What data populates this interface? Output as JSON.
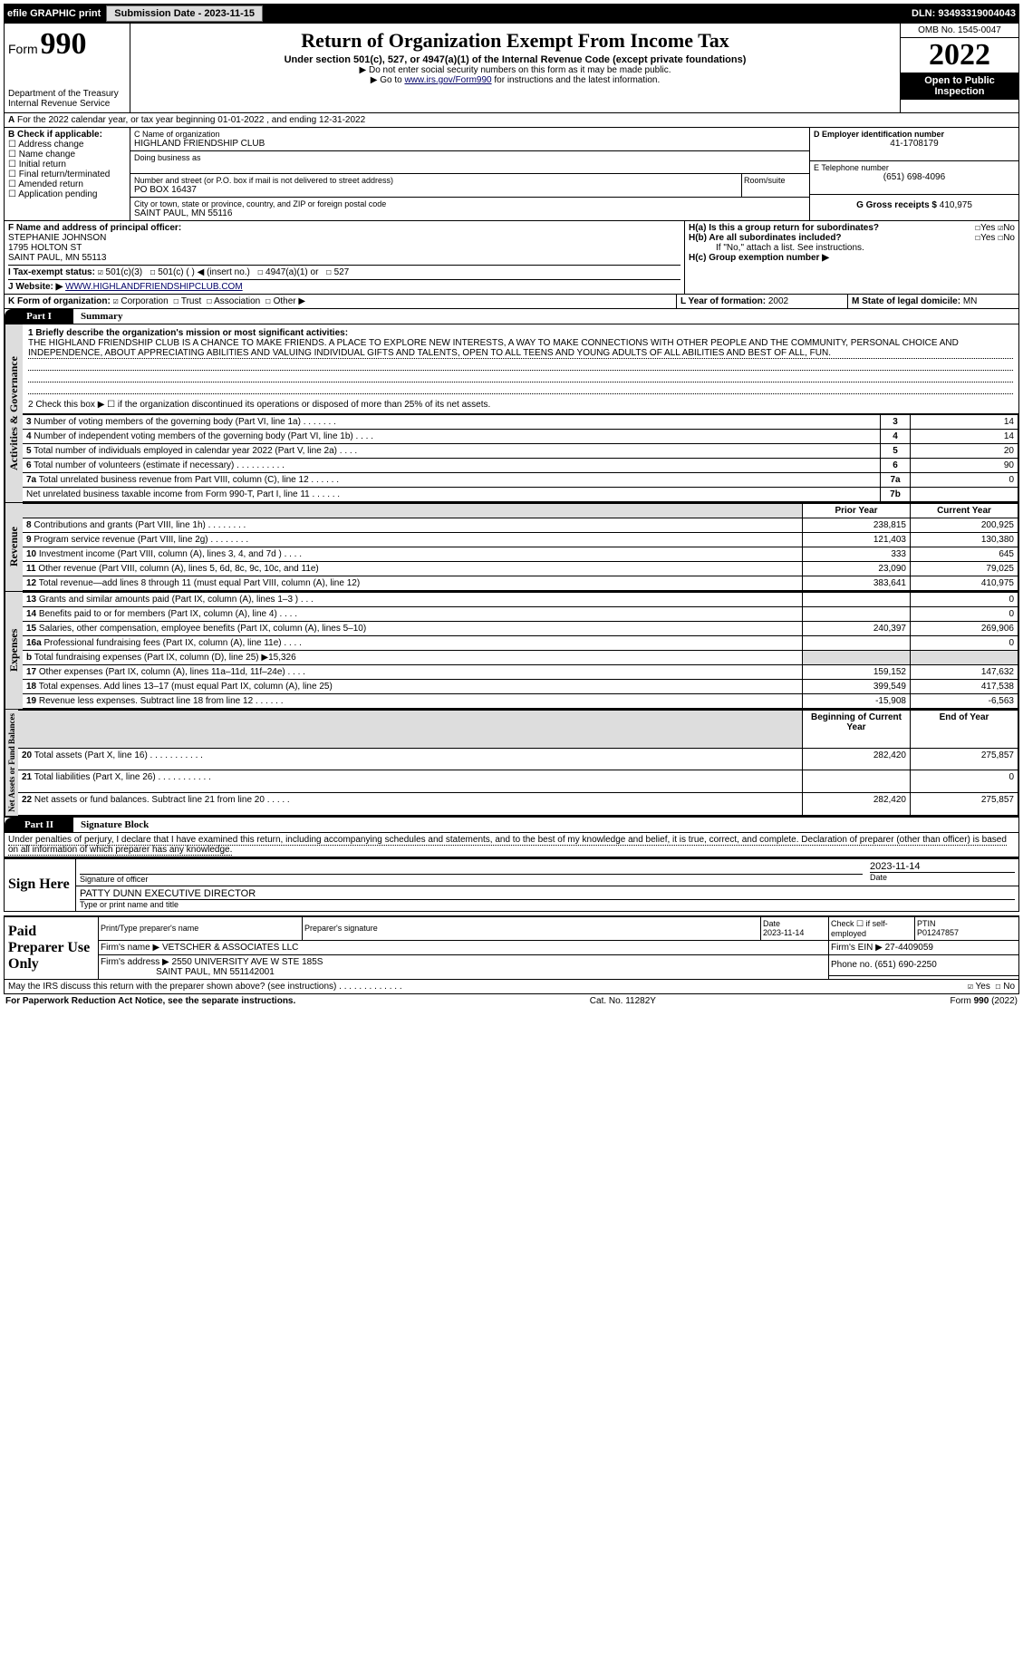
{
  "top": {
    "efile": "efile GRAPHIC print",
    "sub": "Submission Date - 2023-11-15",
    "dln": "DLN: 93493319004043"
  },
  "hdr": {
    "form": "Form",
    "no": "990",
    "title": "Return of Organization Exempt From Income Tax",
    "sub": "Under section 501(c), 527, or 4947(a)(1) of the Internal Revenue Code (except private foundations)",
    "note1": "▶ Do not enter social security numbers on this form as it may be made public.",
    "note2": "▶ Go to www.irs.gov/Form990 for instructions and the latest information.",
    "link": "www.irs.gov/Form990",
    "dept": "Department of the Treasury",
    "irs": "Internal Revenue Service",
    "omb": "OMB No. 1545-0047",
    "yr": "2022",
    "insp": "Open to Public Inspection"
  },
  "A": {
    "txt": "For the 2022 calendar year, or tax year beginning 01-01-2022   , and ending 12-31-2022"
  },
  "B": {
    "hdr": "B Check if applicable:",
    "items": [
      "Address change",
      "Name change",
      "Initial return",
      "Final return/terminated",
      "Amended return",
      "Application pending"
    ]
  },
  "C": {
    "lbl": "C Name of organization",
    "name": "HIGHLAND FRIENDSHIP CLUB",
    "dba": "Doing business as",
    "addr_lbl": "Number and street (or P.O. box if mail is not delivered to street address)",
    "room": "Room/suite",
    "addr": "PO BOX 16437",
    "city_lbl": "City or town, state or province, country, and ZIP or foreign postal code",
    "city": "SAINT PAUL, MN  55116"
  },
  "D": {
    "lbl": "D Employer identification number",
    "val": "41-1708179"
  },
  "E": {
    "lbl": "E Telephone number",
    "val": "(651) 698-4096"
  },
  "G": {
    "lbl": "G Gross receipts $",
    "val": "410,975"
  },
  "F": {
    "lbl": "F Name and address of principal officer:",
    "name": "STEPHANIE JOHNSON",
    "addr1": "1795 HOLTON ST",
    "addr2": "SAINT PAUL, MN  55113"
  },
  "H": {
    "a": "H(a)  Is this a group return for subordinates?",
    "b": "H(b)  Are all subordinates included?",
    "note": "If \"No,\" attach a list. See instructions.",
    "c": "H(c)  Group exemption number ▶",
    "yes": "Yes",
    "no": "No"
  },
  "I": {
    "lbl": "I  Tax-exempt status:",
    "opts": [
      "501(c)(3)",
      "501(c) (  ) ◀ (insert no.)",
      "4947(a)(1) or",
      "527"
    ]
  },
  "J": {
    "lbl": "J  Website: ▶",
    "val": "WWW.HIGHLANDFRIENDSHIPCLUB.COM"
  },
  "K": {
    "lbl": "K Form of organization:",
    "opts": [
      "Corporation",
      "Trust",
      "Association",
      "Other ▶"
    ]
  },
  "L": {
    "lbl": "L Year of formation:",
    "val": "2002"
  },
  "M": {
    "lbl": "M State of legal domicile:",
    "val": "MN"
  },
  "p1": {
    "bar": "Part I",
    "name": "Summary",
    "l1": "1 Briefly describe the organization's mission or most significant activities:",
    "mission": "THE HIGHLAND FRIENDSHIP CLUB IS A CHANCE TO MAKE FRIENDS. A PLACE TO EXPLORE NEW INTERESTS, A WAY TO MAKE CONNECTIONS WITH OTHER PEOPLE AND THE COMMUNITY, PERSONAL CHOICE AND INDEPENDENCE, ABOUT APPRECIATING ABILITIES AND VALUING INDIVIDUAL GIFTS AND TALENTS, OPEN TO ALL TEENS AND YOUNG ADULTS OF ALL ABILITIES AND BEST OF ALL, FUN.",
    "l2": "2  Check this box ▶ ☐  if the organization discontinued its operations or disposed of more than 25% of its net assets."
  },
  "ag": {
    "strip": "Activities & Governance",
    "rows": [
      {
        "n": "3",
        "t": "Number of voting members of the governing body (Part VI, line 1a)  .   .   .   .   .   .   .",
        "c": "3",
        "v": "14"
      },
      {
        "n": "4",
        "t": "Number of independent voting members of the governing body (Part VI, line 1b)  .   .   .   .",
        "c": "4",
        "v": "14"
      },
      {
        "n": "5",
        "t": "Total number of individuals employed in calendar year 2022 (Part V, line 2a)  .   .   .   .",
        "c": "5",
        "v": "20"
      },
      {
        "n": "6",
        "t": "Total number of volunteers (estimate if necessary)   .   .   .   .   .   .   .   .   .   .",
        "c": "6",
        "v": "90"
      },
      {
        "n": "7a",
        "t": "Total unrelated business revenue from Part VIII, column (C), line 12  .   .   .   .   .   .",
        "c": "7a",
        "v": "0"
      },
      {
        "n": "",
        "t": "Net unrelated business taxable income from Form 990-T, Part I, line 11  .   .   .   .   .   .",
        "c": "7b",
        "v": ""
      }
    ]
  },
  "rev": {
    "strip": "Revenue",
    "h1": "Prior Year",
    "h2": "Current Year",
    "rows": [
      {
        "n": "8",
        "t": "Contributions and grants (Part VIII, line 1h)   .   .   .   .   .   .   .   .",
        "p": "238,815",
        "c": "200,925"
      },
      {
        "n": "9",
        "t": "Program service revenue (Part VIII, line 2g)   .   .   .   .   .   .   .   .",
        "p": "121,403",
        "c": "130,380"
      },
      {
        "n": "10",
        "t": "Investment income (Part VIII, column (A), lines 3, 4, and 7d )   .   .   .   .",
        "p": "333",
        "c": "645"
      },
      {
        "n": "11",
        "t": "Other revenue (Part VIII, column (A), lines 5, 6d, 8c, 9c, 10c, and 11e)",
        "p": "23,090",
        "c": "79,025"
      },
      {
        "n": "12",
        "t": "Total revenue—add lines 8 through 11 (must equal Part VIII, column (A), line 12)",
        "p": "383,641",
        "c": "410,975"
      }
    ]
  },
  "exp": {
    "strip": "Expenses",
    "rows": [
      {
        "n": "13",
        "t": "Grants and similar amounts paid (Part IX, column (A), lines 1–3 )   .   .   .",
        "p": "",
        "c": "0"
      },
      {
        "n": "14",
        "t": "Benefits paid to or for members (Part IX, column (A), line 4)   .   .   .   .",
        "p": "",
        "c": "0"
      },
      {
        "n": "15",
        "t": "Salaries, other compensation, employee benefits (Part IX, column (A), lines 5–10)",
        "p": "240,397",
        "c": "269,906"
      },
      {
        "n": "16a",
        "t": "Professional fundraising fees (Part IX, column (A), line 11e)   .   .   .   .",
        "p": "",
        "c": "0"
      },
      {
        "n": "b",
        "t": "Total fundraising expenses (Part IX, column (D), line 25) ▶15,326",
        "p": "SH",
        "c": "SH"
      },
      {
        "n": "17",
        "t": "Other expenses (Part IX, column (A), lines 11a–11d, 11f–24e)   .   .   .   .",
        "p": "159,152",
        "c": "147,632"
      },
      {
        "n": "18",
        "t": "Total expenses. Add lines 13–17 (must equal Part IX, column (A), line 25)",
        "p": "399,549",
        "c": "417,538"
      },
      {
        "n": "19",
        "t": "Revenue less expenses. Subtract line 18 from line 12  .   .   .   .   .   .",
        "p": "-15,908",
        "c": "-6,563"
      }
    ]
  },
  "na": {
    "strip": "Net Assets or Fund Balances",
    "h1": "Beginning of Current Year",
    "h2": "End of Year",
    "rows": [
      {
        "n": "20",
        "t": "Total assets (Part X, line 16)  .   .   .   .   .   .   .   .   .   .   .",
        "p": "282,420",
        "c": "275,857"
      },
      {
        "n": "21",
        "t": "Total liabilities (Part X, line 26)  .   .   .   .   .   .   .   .   .   .   .",
        "p": "",
        "c": "0"
      },
      {
        "n": "22",
        "t": "Net assets or fund balances. Subtract line 21 from line 20  .   .   .   .   .",
        "p": "282,420",
        "c": "275,857"
      }
    ]
  },
  "p2": {
    "bar": "Part II",
    "name": "Signature Block",
    "decl": "Under penalties of perjury, I declare that I have examined this return, including accompanying schedules and statements, and to the best of my knowledge and belief, it is true, correct, and complete. Declaration of preparer (other than officer) is based on all information of which preparer has any knowledge."
  },
  "sign": {
    "here": "Sign Here",
    "sig": "Signature of officer",
    "date": "Date",
    "dv": "2023-11-14",
    "typed": "PATTY DUNN  EXECUTIVE DIRECTOR",
    "typed_lbl": "Type or print name and title"
  },
  "prep": {
    "title": "Paid Preparer Use Only",
    "h": [
      "Print/Type preparer's name",
      "Preparer's signature",
      "Date",
      "Check ☐ if self-employed",
      "PTIN"
    ],
    "date": "2023-11-14",
    "ptin": "P01247857",
    "firm_lbl": "Firm's name   ▶",
    "firm": "VETSCHER & ASSOCIATES LLC",
    "ein_lbl": "Firm's EIN ▶",
    "ein": "27-4409059",
    "addr_lbl": "Firm's address ▶",
    "addr1": "2550 UNIVERSITY AVE W STE 185S",
    "addr2": "SAINT PAUL, MN  551142001",
    "ph_lbl": "Phone no.",
    "ph": "(651) 690-2250"
  },
  "discuss": "May the IRS discuss this return with the preparer shown above? (see instructions)   .   .   .   .   .   .   .   .   .   .   .   .   .",
  "ft": {
    "l": "For Paperwork Reduction Act Notice, see the separate instructions.",
    "c": "Cat. No. 11282Y",
    "r": "Form 990 (2022)"
  }
}
